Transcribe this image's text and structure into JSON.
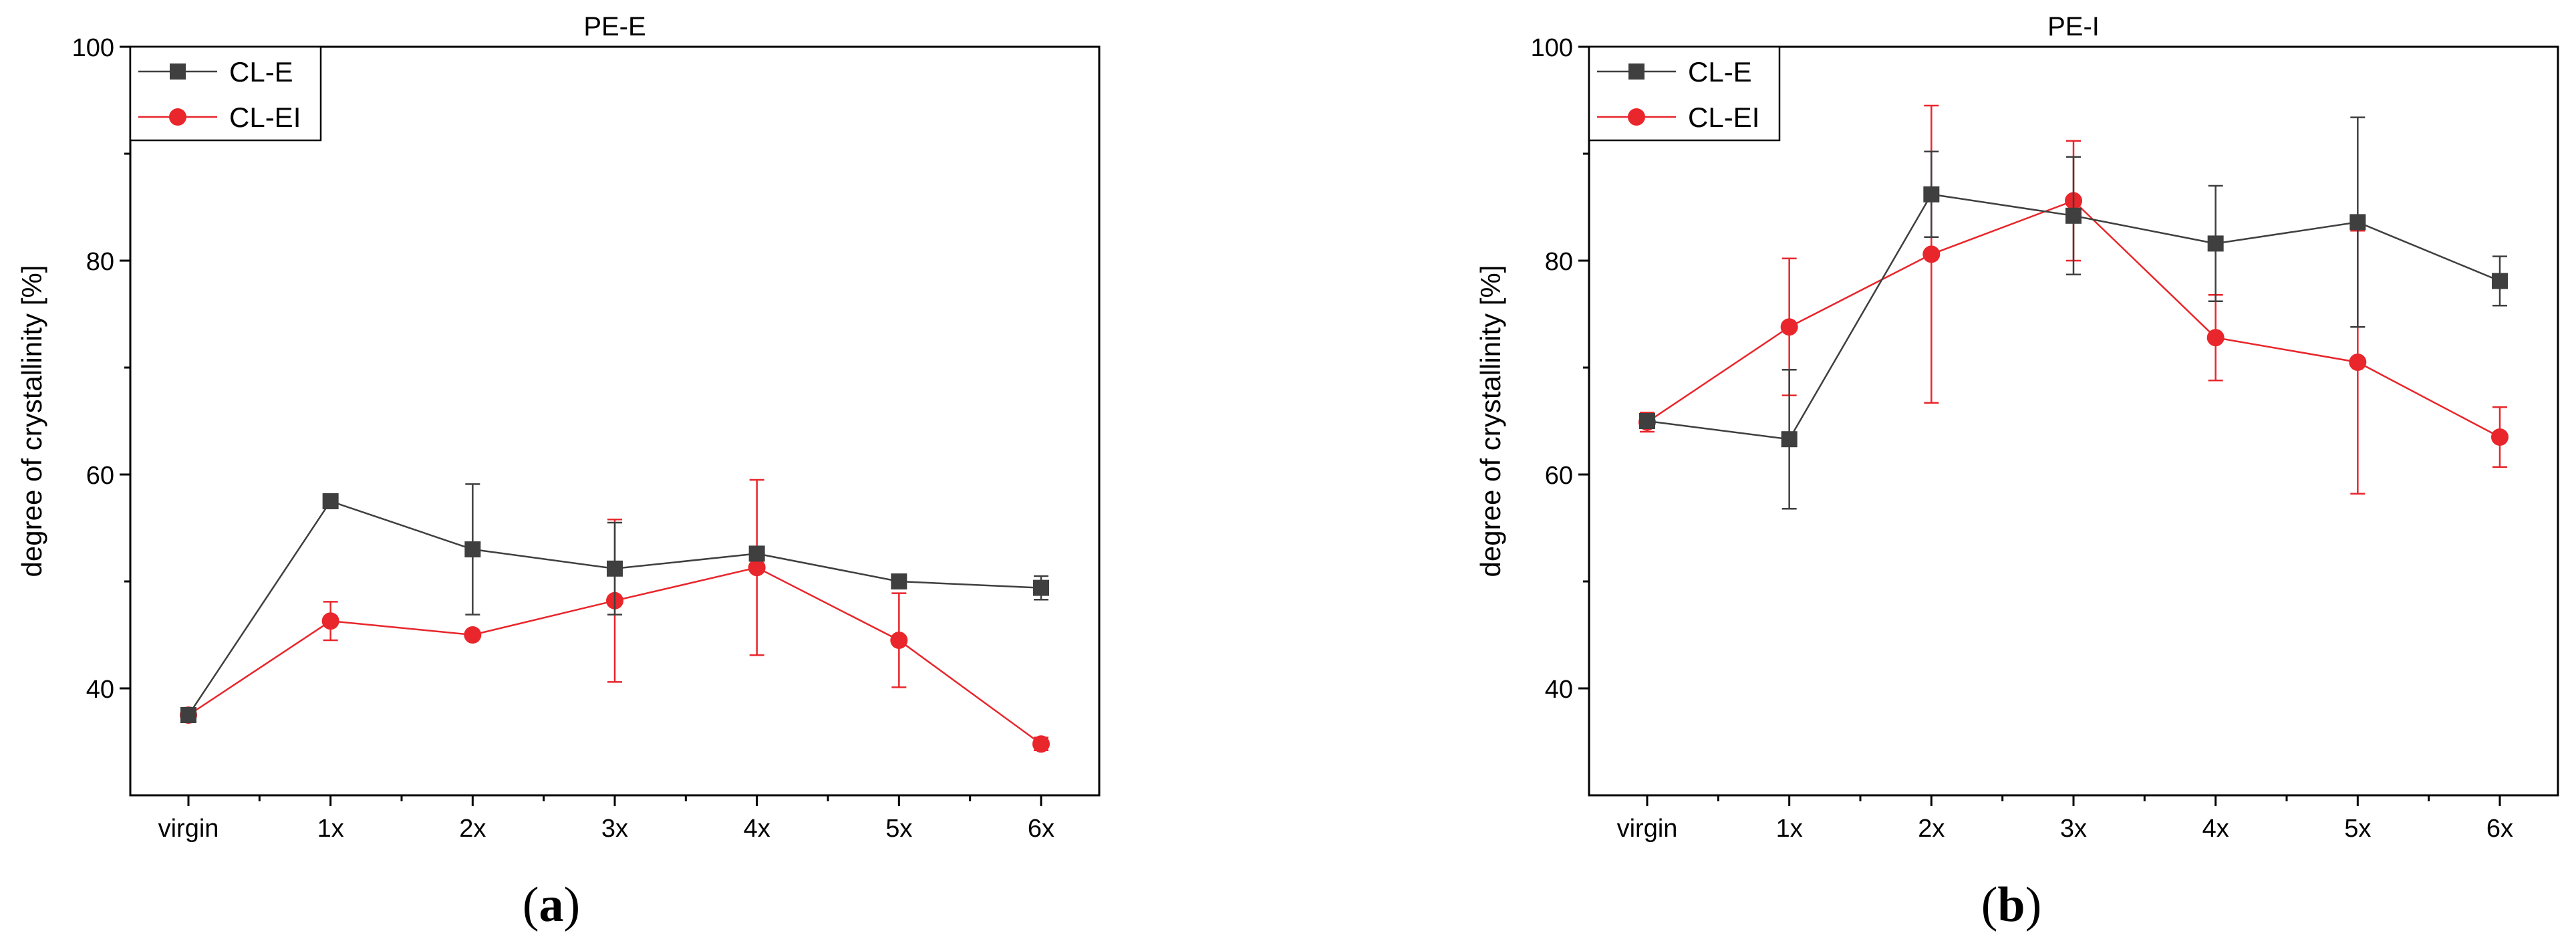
{
  "colors": {
    "series_dark": "#3f3f3f",
    "series_red": "#e8262b",
    "axis": "#000000",
    "background": "#ffffff"
  },
  "chart_data": [
    {
      "type": "line",
      "panel": "a",
      "caption_letter": "a",
      "title": "PE-E",
      "xlabel": "",
      "ylabel": "degree of crystallinity [%]",
      "categories": [
        "virgin",
        "1x",
        "2x",
        "3x",
        "4x",
        "5x",
        "6x"
      ],
      "ylim": [
        30,
        100
      ],
      "yticks": [
        40,
        60,
        80,
        100
      ],
      "legend_position": "top-left",
      "grid": false,
      "series": [
        {
          "name": "CL-E",
          "color": "#3f3f3f",
          "marker": "square",
          "values": [
            37.5,
            57.5,
            53.0,
            51.2,
            52.6,
            50.0,
            49.4
          ],
          "errors": [
            0.4,
            0.4,
            6.1,
            4.3,
            0.5,
            0.5,
            1.1
          ]
        },
        {
          "name": "CL-EI",
          "color": "#e8262b",
          "marker": "circle",
          "values": [
            37.5,
            46.3,
            45.0,
            48.2,
            51.3,
            44.5,
            34.8
          ],
          "errors": [
            0.3,
            1.8,
            0.3,
            7.6,
            8.2,
            4.4,
            0.6
          ]
        }
      ]
    },
    {
      "type": "line",
      "panel": "b",
      "caption_letter": "b",
      "title": "PE-I",
      "xlabel": "",
      "ylabel": "degree of crystallinity [%]",
      "categories": [
        "virgin",
        "1x",
        "2x",
        "3x",
        "4x",
        "5x",
        "6x"
      ],
      "ylim": [
        30,
        100
      ],
      "yticks": [
        40,
        60,
        80,
        100
      ],
      "legend_position": "top-left",
      "grid": false,
      "series": [
        {
          "name": "CL-E",
          "color": "#3f3f3f",
          "marker": "square",
          "values": [
            65.0,
            63.3,
            86.2,
            84.2,
            81.6,
            83.6,
            78.1
          ],
          "errors": [
            0.5,
            6.5,
            4.0,
            5.5,
            5.4,
            9.8,
            2.3
          ]
        },
        {
          "name": "CL-EI",
          "color": "#e8262b",
          "marker": "circle",
          "values": [
            64.9,
            73.8,
            80.6,
            85.6,
            72.8,
            70.5,
            63.5
          ],
          "errors": [
            0.9,
            6.4,
            13.9,
            5.6,
            4.0,
            12.3,
            2.8
          ]
        }
      ]
    }
  ]
}
